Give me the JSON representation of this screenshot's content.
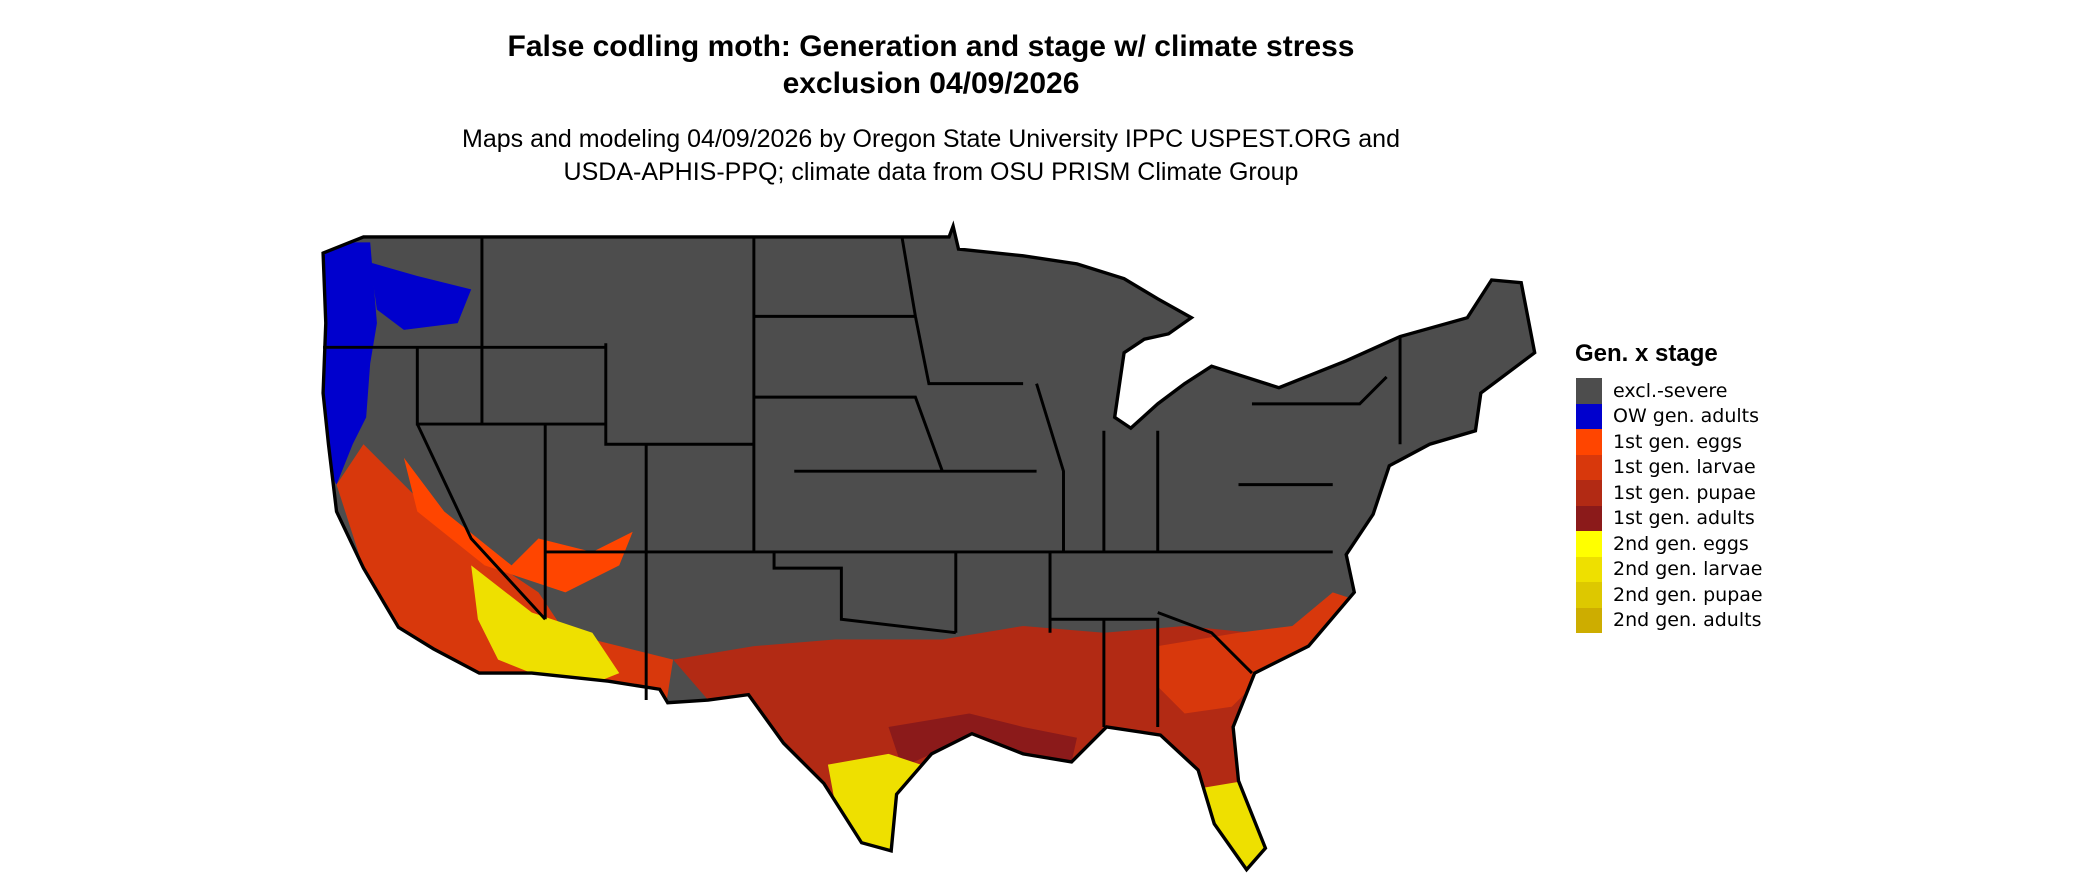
{
  "title": {
    "line1": "False codling moth: Generation and stage w/ climate stress",
    "line2": "exclusion 04/09/2026"
  },
  "subtitle": {
    "line1": "Maps and modeling 04/09/2026 by Oregon State University IPPC USPEST.ORG and",
    "line2": "USDA-APHIS-PPQ; climate data from OSU PRISM Climate Group"
  },
  "legend": {
    "title": "Gen. x stage",
    "items": [
      {
        "label": "excl.-severe",
        "color": "#4d4d4d"
      },
      {
        "label": "OW gen. adults",
        "color": "#0000cd"
      },
      {
        "label": "1st gen. eggs",
        "color": "#ff4500"
      },
      {
        "label": "1st gen. larvae",
        "color": "#d8380c"
      },
      {
        "label": "1st gen. pupae",
        "color": "#b22a14"
      },
      {
        "label": "1st gen. adults",
        "color": "#8b1a1a"
      },
      {
        "label": "2nd gen. eggs",
        "color": "#ffff00"
      },
      {
        "label": "2nd gen. larvae",
        "color": "#eee000"
      },
      {
        "label": "2nd gen. pupae",
        "color": "#ddc800"
      },
      {
        "label": "2nd gen. adults",
        "color": "#cdad00"
      }
    ]
  },
  "map": {
    "region": "Contiguous United States",
    "background_color": "#4d4d4d",
    "border_color": "#000000"
  }
}
